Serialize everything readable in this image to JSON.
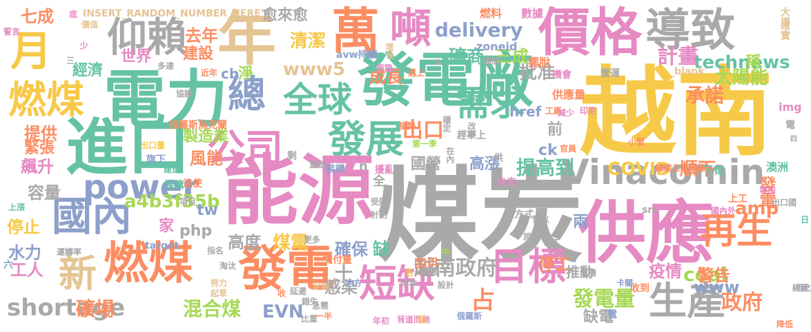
{
  "palette": {
    "gold": "#f7c948",
    "gray": "#a9a9a9",
    "pink": "#e68ac3",
    "teal": "#66c2a5",
    "orange": "#fc8d62",
    "blue": "#8da0cb",
    "green": "#a6d854",
    "tan": "#e5c494",
    "slate": "#b3b3b3"
  },
  "words": [
    {
      "text": "越南",
      "color": "#f7c948",
      "icon": ""
    },
    {
      "text": "煤炭",
      "color": "#a9a9a9"
    },
    {
      "text": "能源",
      "color": "#e68ac3"
    },
    {
      "text": "供應",
      "color": "#e68ac3"
    },
    {
      "text": "電力",
      "color": "#66c2a5"
    },
    {
      "text": "發電廠",
      "color": "#66c2a5"
    },
    {
      "text": "進口",
      "color": "#66c2a5"
    },
    {
      "text": "價格",
      "color": "#e68ac3"
    },
    {
      "text": "年",
      "color": "#e5c494"
    },
    {
      "text": "萬",
      "color": "#fc8d62"
    },
    {
      "text": "噸",
      "color": "#e68ac3"
    },
    {
      "text": "導致",
      "color": "#a9a9a9"
    },
    {
      "text": "仰賴",
      "color": "#a9a9a9"
    },
    {
      "text": "月",
      "color": "#f7c948"
    },
    {
      "text": "燃煤",
      "color": "#f7c948"
    },
    {
      "text": "國內",
      "color": "#8da0cb"
    },
    {
      "text": "燃煤",
      "color": "#fc8d62"
    },
    {
      "text": "發電",
      "color": "#fc8d62"
    },
    {
      "text": "新",
      "color": "#e5c494"
    },
    {
      "text": "Vinacomin",
      "color": "#a9a9a9"
    },
    {
      "text": "power",
      "color": "#8da0cb"
    },
    {
      "text": "公司",
      "color": "#e68ac3"
    },
    {
      "text": "總",
      "color": "#8da0cb"
    },
    {
      "text": "全球",
      "color": "#66c2a5"
    },
    {
      "text": "發展",
      "color": "#66c2a5"
    },
    {
      "text": "需求",
      "color": "#66c2a5"
    },
    {
      "text": "再生",
      "color": "#fc8d62"
    },
    {
      "text": "生產",
      "color": "#a9a9a9"
    },
    {
      "text": "目標",
      "color": "#e68ac3"
    },
    {
      "text": "短缺",
      "color": "#e68ac3"
    },
    {
      "text": "shortage",
      "color": "#a9a9a9"
    },
    {
      "text": "礦場",
      "color": "#fc8d62"
    },
    {
      "text": "混合煤",
      "color": "#a6d854"
    },
    {
      "text": "EVN",
      "color": "#8da0cb"
    },
    {
      "text": "感染",
      "color": "#a9a9a9"
    },
    {
      "text": "越南政府",
      "color": "#a9a9a9"
    },
    {
      "text": "占",
      "color": "#fc8d62"
    },
    {
      "text": "政府",
      "color": "#fc8d62"
    },
    {
      "text": "發電量",
      "color": "#a6d854"
    },
    {
      "text": "coal",
      "color": "#a6d854"
    },
    {
      "text": "www",
      "color": "#8da0cb"
    },
    {
      "text": "amp",
      "color": "#fc8d62"
    },
    {
      "text": "COVID",
      "color": "#f7c948"
    },
    {
      "text": "順下",
      "color": "#fc8d62"
    },
    {
      "text": "technews",
      "color": "#66c2a5"
    },
    {
      "text": "太陽能",
      "color": "#a6d854"
    },
    {
      "text": "計畫",
      "color": "#e68ac3"
    },
    {
      "text": "承諾",
      "color": "#fc8d62"
    },
    {
      "text": "批准",
      "color": "#a9a9a9"
    },
    {
      "text": "delivery",
      "color": "#8da0cb"
    },
    {
      "text": "礦商",
      "color": "#66c2a5"
    },
    {
      "text": "成長",
      "color": "#fc8d62"
    },
    {
      "text": "www5",
      "color": "#e5c494"
    },
    {
      "text": "清潔",
      "color": "#f7c948"
    },
    {
      "text": "去年",
      "color": "#fc8d62"
    },
    {
      "text": "建設",
      "color": "#fc8d62"
    },
    {
      "text": "世界",
      "color": "#e68ac3"
    },
    {
      "text": "經濟",
      "color": "#66c2a5"
    },
    {
      "text": "提供",
      "color": "#fc8d62"
    },
    {
      "text": "緊張",
      "color": "#fc8d62"
    },
    {
      "text": "飆升",
      "color": "#e68ac3"
    },
    {
      "text": "容量",
      "color": "#a9a9a9"
    },
    {
      "text": "停止",
      "color": "#f7c948"
    },
    {
      "text": "水力",
      "color": "#8da0cb"
    },
    {
      "text": "工人",
      "color": "#e68ac3"
    },
    {
      "text": "製造業",
      "color": "#a6d854"
    },
    {
      "text": "風能",
      "color": "#fc8d62"
    },
    {
      "text": "a4b3f35b",
      "color": "#a6d854"
    },
    {
      "text": "tw",
      "color": "#8da0cb"
    },
    {
      "text": "php",
      "color": "#a9a9a9"
    },
    {
      "text": "家",
      "color": "#e68ac3"
    },
    {
      "text": "高度",
      "color": "#a9a9a9"
    },
    {
      "text": "煤電",
      "color": "#f7c948"
    },
    {
      "text": "確保",
      "color": "#8da0cb"
    },
    {
      "text": "缺",
      "color": "#66c2a5"
    },
    {
      "text": "四月",
      "color": "#fc8d62"
    },
    {
      "text": "停工",
      "color": "#fc8d62"
    },
    {
      "text": "推動",
      "color": "#a9a9a9"
    },
    {
      "text": "兩",
      "color": "#8da0cb"
    },
    {
      "text": "疫情",
      "color": "#e68ac3"
    },
    {
      "text": "警告",
      "color": "#fc8d62"
    },
    {
      "text": "缺電",
      "color": "#a9a9a9"
    },
    {
      "text": "前",
      "color": "#a9a9a9"
    },
    {
      "text": "ck",
      "color": "#8da0cb"
    },
    {
      "text": "提高到",
      "color": "#66c2a5"
    },
    {
      "text": "高漲",
      "color": "#8da0cb"
    },
    {
      "text": "國營",
      "color": "#a9a9a9"
    },
    {
      "text": "出口",
      "color": "#fc8d62"
    },
    {
      "text": "稱",
      "color": "#a6d854"
    },
    {
      "text": "七成",
      "color": "#fc8d62"
    },
    {
      "text": "INSERT_RANDOM_NUMBER_HERE'",
      "color": "#e5c494"
    },
    {
      "text": "愈來愈",
      "color": "#a9a9a9"
    },
    {
      "text": "cb",
      "color": "#8da0cb"
    },
    {
      "text": "淨",
      "color": "#a6d854"
    },
    {
      "text": "三成",
      "color": "#a6d854"
    },
    {
      "text": "href",
      "color": "#8da0cb"
    },
    {
      "text": "十",
      "color": "#a9a9a9"
    },
    {
      "text": "n",
      "color": "#a9a9a9"
    },
    {
      "text": "a",
      "color": "#a9a9a9"
    },
    {
      "text": "全",
      "color": "#a9a9a9"
    },
    {
      "text": "發電",
      "color": "#fc8d62"
    },
    {
      "text": "礦產工業集團",
      "color": "#fc8d62"
    },
    {
      "text": "澳洲",
      "color": "#66c2a5"
    },
    {
      "text": "下旬",
      "color": "#66c2a5"
    },
    {
      "text": "增加",
      "color": "#e68ac3"
    },
    {
      "text": "上工",
      "color": "#fc8d62"
    },
    {
      "text": "國內外",
      "color": "#e68ac3"
    },
    {
      "text": "出口國",
      "color": "#a9a9a9"
    },
    {
      "text": "供應量",
      "color": "#fc8d62"
    },
    {
      "text": "工廠",
      "color": "#fc8d62"
    },
    {
      "text": "減少",
      "color": "#e68ac3"
    },
    {
      "text": "印尼",
      "color": "#e68ac3"
    },
    {
      "text": "img",
      "color": "#e68ac3"
    },
    {
      "text": "電",
      "color": "#a9a9a9"
    },
    {
      "text": "四",
      "color": "#a9a9a9"
    },
    {
      "text": "機會",
      "color": "#e68ac3"
    },
    {
      "text": "營運",
      "color": "#a9a9a9"
    },
    {
      "text": "_blank'",
      "color": "#e5c494"
    },
    {
      "text": "確實",
      "color": "#e5c494"
    },
    {
      "text": "大增",
      "color": "#e5c494"
    },
    {
      "text": "燃料",
      "color": "#fc8d62"
    },
    {
      "text": "數據",
      "color": "#e68ac3"
    },
    {
      "text": "avw持續",
      "color": "#8da0cb"
    },
    {
      "text": "遇上",
      "color": "#fc8d62"
    },
    {
      "text": "擺脫",
      "color": "#fc8d62"
    },
    {
      "text": "期間",
      "color": "#a9a9a9"
    },
    {
      "text": "zoneid",
      "color": "#8da0cb"
    },
    {
      "text": "增長",
      "color": "#e5c494"
    },
    {
      "text": "底",
      "color": "#e68ac3"
    },
    {
      "text": "價值",
      "color": "#e5c494"
    },
    {
      "text": "誓言",
      "color": "#e68ac3"
    },
    {
      "text": "少",
      "color": "#e68ac3"
    },
    {
      "text": "三",
      "color": "#a9a9a9"
    },
    {
      "text": "多達",
      "color": "#a9a9a9"
    },
    {
      "text": "近年",
      "color": "#fc8d62"
    },
    {
      "text": "面臨",
      "color": "#e68ac3"
    },
    {
      "text": "協議",
      "color": "#a9a9a9"
    },
    {
      "text": "俄羅斯烏克蘭",
      "color": "#fc8d62"
    },
    {
      "text": "謹勢",
      "color": "#fc8d62"
    },
    {
      "text": "穩定",
      "color": "#a9a9a9"
    },
    {
      "text": "改變",
      "color": "#a9a9a9"
    },
    {
      "text": "趕不上",
      "color": "#a9a9a9"
    },
    {
      "text": "第一季",
      "color": "#a6d854"
    },
    {
      "text": "在內",
      "color": "#a9a9a9"
    },
    {
      "text": "供",
      "color": "#a9a9a9"
    },
    {
      "text": "官員",
      "color": "#fc8d62"
    },
    {
      "text": "小型",
      "color": "#fc8d62"
    },
    {
      "text": "出口量",
      "color": "#f7c948"
    },
    {
      "text": "旗下",
      "color": "#8da0cb"
    },
    {
      "text": "建造",
      "color": "#66c2a5"
    },
    {
      "text": "剩",
      "color": "#a9a9a9"
    },
    {
      "text": "重啟",
      "color": "#a9a9a9"
    },
    {
      "text": "裝機",
      "color": "#8da0cb"
    },
    {
      "text": "擾亂",
      "color": "#e68ac3"
    },
    {
      "text": "煤礦",
      "color": "#66c2a5"
    },
    {
      "text": "迫使",
      "color": "#fc8d62"
    },
    {
      "text": "未來",
      "color": "#e68ac3"
    },
    {
      "text": "上漲",
      "color": "#66c2a5"
    },
    {
      "text": "項目",
      "color": "#a9a9a9"
    },
    {
      "text": "受阻",
      "color": "#a9a9a9"
    },
    {
      "text": "計劃",
      "color": "#a9a9a9"
    },
    {
      "text": "方式",
      "color": "#a9a9a9"
    },
    {
      "text": "難以",
      "color": "#a9a9a9"
    },
    {
      "text": "src",
      "color": "#a9a9a9"
    },
    {
      "text": "日",
      "color": "#66c2a5"
    },
    {
      "text": "交付量",
      "color": "#fc8d62"
    },
    {
      "text": "target",
      "color": "#8da0cb"
    },
    {
      "text": "原本",
      "color": "#a9a9a9"
    },
    {
      "text": "更多",
      "color": "#a9a9a9"
    },
    {
      "text": "指名",
      "color": "#a9a9a9"
    },
    {
      "text": "中",
      "color": "#a6d854"
    },
    {
      "text": "礦工",
      "color": "#a9a9a9"
    },
    {
      "text": "運轉率",
      "color": "#a9a9a9"
    },
    {
      "text": "淘汰",
      "color": "#a9a9a9"
    },
    {
      "text": "推遲",
      "color": "#a9a9a9"
    },
    {
      "text": "名",
      "color": "#f7c948"
    },
    {
      "text": "危機",
      "color": "#a9a9a9"
    },
    {
      "text": "卡關",
      "color": "#8da0cb"
    },
    {
      "text": "成本",
      "color": "#a9a9a9"
    },
    {
      "text": "地方",
      "color": "#8da0cb"
    },
    {
      "text": "收到",
      "color": "#fc8d62"
    },
    {
      "text": "至少",
      "color": "#8da0cb"
    },
    {
      "text": "六",
      "color": "#8da0cb"
    },
    {
      "text": "努力",
      "color": "#e5c494"
    },
    {
      "text": "足夠",
      "color": "#e5c494"
    },
    {
      "text": "設計",
      "color": "#a9a9a9"
    },
    {
      "text": "起草",
      "color": "#e5c494"
    },
    {
      "text": "延遲",
      "color": "#a9a9a9"
    },
    {
      "text": "錯失",
      "color": "#a9a9a9"
    },
    {
      "text": "收",
      "color": "#fc8d62"
    },
    {
      "text": "急需",
      "color": "#a9a9a9"
    },
    {
      "text": "比重",
      "color": "#a9a9a9"
    },
    {
      "text": "一半",
      "color": "#fc8d62"
    },
    {
      "text": "年初",
      "color": "#e68ac3"
    },
    {
      "text": "背道而馳",
      "color": "#e68ac3"
    },
    {
      "text": "估",
      "color": "#f7c948"
    },
    {
      "text": "俄羅斯",
      "color": "#8da0cb"
    },
    {
      "text": "電",
      "color": "#8da0cb"
    },
    {
      "text": "總理",
      "color": "#a9a9a9"
    },
    {
      "text": "降低",
      "color": "#fc8d62"
    }
  ]
}
